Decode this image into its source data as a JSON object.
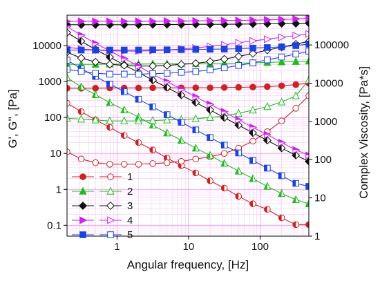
{
  "chart_data": {
    "type": "scatter",
    "title": "",
    "xlabel": "Angular frequency, [Hz]",
    "ylabel_left": "G', G'', [Pa]",
    "ylabel_right": "Complex Viscosity, [Pa*s]",
    "x_scale": "log",
    "y_left_scale": "log",
    "y_right_scale": "log",
    "xlim": [
      0.2,
      480
    ],
    "ylim_left": [
      0.05,
      70000
    ],
    "ylim_right": [
      1,
      600000
    ],
    "x_ticks": [
      {
        "v": 1,
        "label": "1"
      },
      {
        "v": 10,
        "label": "10"
      },
      {
        "v": 100,
        "label": "100"
      }
    ],
    "y_left_ticks": [
      {
        "v": 0.1,
        "label": "0.1"
      },
      {
        "v": 1,
        "label": "1"
      },
      {
        "v": 10,
        "label": "10"
      },
      {
        "v": 100,
        "label": "100"
      },
      {
        "v": 1000,
        "label": "1000"
      },
      {
        "v": 10000,
        "label": "10000"
      }
    ],
    "y_right_ticks": [
      {
        "v": 1,
        "label": "1"
      },
      {
        "v": 10,
        "label": "10"
      },
      {
        "v": 100,
        "label": "100"
      },
      {
        "v": 1000,
        "label": "1000"
      },
      {
        "v": 10000,
        "label": "10000"
      },
      {
        "v": 100000,
        "label": "100000"
      }
    ],
    "grid": true,
    "legend_position": "bottom-left",
    "x": [
      0.2,
      0.316,
      0.5,
      0.792,
      1.26,
      2.0,
      3.16,
      5.0,
      7.92,
      12.6,
      20.0,
      31.6,
      50.0,
      79.2,
      126,
      200,
      316,
      480
    ],
    "series": [
      {
        "name": "1",
        "color": "#cc2222",
        "marker": "circle",
        "storage_modulus": [
          650,
          650,
          650,
          660,
          660,
          660,
          665,
          665,
          665,
          670,
          670,
          680,
          690,
          700,
          720,
          760,
          820,
          900
        ],
        "loss_modulus": [
          11,
          7,
          5.5,
          5,
          5,
          5,
          5.2,
          5.5,
          6,
          7,
          8,
          10,
          14,
          22,
          40,
          80,
          180,
          400
        ],
        "complex_viscosity": [
          3000,
          1800,
          1100,
          700,
          430,
          280,
          180,
          110,
          70,
          45,
          28,
          18,
          11,
          7,
          5,
          3,
          2,
          2
        ]
      },
      {
        "name": "2",
        "color": "#22bb22",
        "marker": "triangle",
        "storage_modulus": [
          3000,
          3000,
          3000,
          3050,
          3050,
          3050,
          3100,
          3100,
          3100,
          3150,
          3150,
          3200,
          3250,
          3300,
          3400,
          3500,
          3600,
          3700
        ],
        "loss_modulus": [
          95,
          90,
          85,
          80,
          80,
          80,
          82,
          85,
          88,
          92,
          100,
          110,
          130,
          160,
          200,
          270,
          400,
          1100
        ],
        "complex_viscosity": [
          14000,
          8000,
          5000,
          3100,
          2000,
          1300,
          800,
          500,
          320,
          200,
          130,
          80,
          50,
          32,
          20,
          13,
          9,
          7
        ]
      },
      {
        "name": "3",
        "color": "#111111",
        "marker": "diamond",
        "storage_modulus": [
          38000,
          38000,
          38000,
          38000,
          38000,
          38000,
          38500,
          38500,
          38500,
          39000,
          39000,
          39000,
          39500,
          40000,
          40500,
          41000,
          41000,
          42000
        ],
        "loss_modulus": [
          6500,
          4500,
          3500,
          3000,
          2800,
          2700,
          2700,
          2800,
          3000,
          3200,
          3600,
          4200,
          5000,
          6000,
          7500,
          9000,
          11000,
          13000
        ],
        "complex_viscosity": [
          210000,
          125000,
          76000,
          48000,
          30000,
          19000,
          12000,
          7700,
          4900,
          3100,
          2000,
          1250,
          800,
          500,
          320,
          200,
          130,
          90
        ]
      },
      {
        "name": "4",
        "color": "#cc22ee",
        "marker": "triangle-right",
        "storage_modulus": [
          47000,
          47000,
          47000,
          47000,
          47000,
          47500,
          47500,
          48000,
          48000,
          48500,
          49000,
          49500,
          50000,
          51000,
          52000,
          53000,
          55000,
          58000
        ],
        "loss_modulus": [
          9000,
          8000,
          7500,
          7200,
          7000,
          7000,
          7200,
          7500,
          8000,
          8600,
          9500,
          10500,
          12000,
          13500,
          15000,
          17000,
          19000,
          21000
        ],
        "complex_viscosity": [
          300000,
          180000,
          110000,
          70000,
          44000,
          28000,
          17000,
          11000,
          7000,
          4400,
          2800,
          1800,
          1100,
          700,
          450,
          280,
          180,
          130
        ]
      },
      {
        "name": "5",
        "color": "#1a44dd",
        "marker": "square",
        "storage_modulus": [
          7500,
          7500,
          7500,
          7500,
          7500,
          7500,
          7600,
          7600,
          7700,
          7800,
          7900,
          8000,
          8200,
          8500,
          8800,
          9200,
          10000,
          11000
        ],
        "loss_modulus": [
          2200,
          1900,
          1700,
          1600,
          1600,
          1600,
          1650,
          1700,
          1800,
          1900,
          2100,
          2400,
          2800,
          3300,
          4000,
          4800,
          5800,
          7000
        ],
        "complex_viscosity": [
          40000,
          24000,
          15000,
          9500,
          6000,
          3800,
          2400,
          1500,
          950,
          600,
          380,
          240,
          150,
          95,
          60,
          38,
          24,
          20
        ]
      }
    ]
  }
}
